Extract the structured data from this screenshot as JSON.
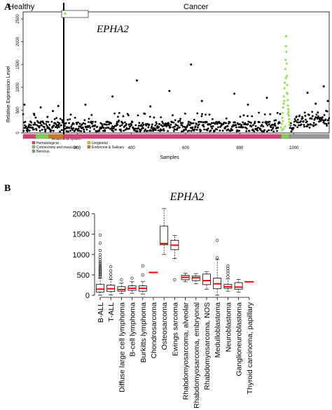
{
  "chart_data": [
    {
      "type": "scatter",
      "panel_label": "A",
      "gene_title": "EPHA2",
      "section_labels": [
        "Healthy",
        "Cancer"
      ],
      "ylabel": "Relative Expression Level",
      "xlabel": "Samples",
      "ylim": [
        0,
        2500
      ],
      "xlim": [
        0,
        1130
      ],
      "yticks": [
        0,
        500,
        1000,
        1500,
        2000,
        2500
      ],
      "xticks": [
        200,
        400,
        600,
        800,
        1000
      ],
      "healthy_divider_x": 150,
      "legend": {
        "marker": "sarcoma",
        "color": "#99dd55",
        "placement": "top-left"
      },
      "highlight_range": [
        950,
        985
      ],
      "sarcoma_points": [
        [
          952,
          120
        ],
        [
          955,
          200
        ],
        [
          957,
          330
        ],
        [
          958,
          440
        ],
        [
          960,
          560
        ],
        [
          962,
          640
        ],
        [
          963,
          800
        ],
        [
          965,
          980
        ],
        [
          966,
          1100
        ],
        [
          968,
          1400
        ],
        [
          969,
          1600
        ],
        [
          970,
          1900
        ],
        [
          971,
          2120
        ],
        [
          972,
          1780
        ],
        [
          973,
          1520
        ],
        [
          974,
          1250
        ],
        [
          975,
          1050
        ],
        [
          976,
          860
        ],
        [
          977,
          720
        ],
        [
          978,
          600
        ],
        [
          979,
          520
        ],
        [
          980,
          460
        ],
        [
          981,
          380
        ],
        [
          982,
          300
        ],
        [
          983,
          240
        ],
        [
          984,
          180
        ],
        [
          956,
          60
        ],
        [
          961,
          90
        ],
        [
          967,
          140
        ],
        [
          959,
          260
        ],
        [
          964,
          700
        ],
        [
          970,
          1200
        ],
        [
          974,
          880
        ],
        [
          978,
          420
        ]
      ],
      "outlier_points": [
        [
          5,
          620
        ],
        [
          40,
          420
        ],
        [
          65,
          560
        ],
        [
          90,
          350
        ],
        [
          110,
          480
        ],
        [
          130,
          590
        ],
        [
          230,
          620
        ],
        [
          330,
          800
        ],
        [
          420,
          1150
        ],
        [
          470,
          580
        ],
        [
          540,
          920
        ],
        [
          620,
          1500
        ],
        [
          660,
          700
        ],
        [
          780,
          860
        ],
        [
          830,
          620
        ],
        [
          900,
          770
        ],
        [
          1050,
          880
        ],
        [
          1080,
          640
        ],
        [
          1110,
          1020
        ],
        [
          1125,
          700
        ]
      ],
      "color_bar": [
        {
          "range": [
            0,
            45
          ],
          "system_index": 0
        },
        {
          "range": [
            45,
            95
          ],
          "system_index": 1
        },
        {
          "range": [
            95,
            150
          ],
          "system_index": 4
        },
        {
          "range": [
            150,
            952
          ],
          "system_index": 0
        },
        {
          "range": [
            952,
            985
          ],
          "system_index": 1
        },
        {
          "range": [
            985,
            1130
          ],
          "system_index": 2
        }
      ],
      "legend_title": "Anatomical system",
      "systems": [
        {
          "name": "Hematological",
          "color": "#d8407a"
        },
        {
          "name": "Connectivity and muscular",
          "color": "#88cc55"
        },
        {
          "name": "Nervous",
          "color": "#999999"
        },
        {
          "name": "Urogenital",
          "color": "#e0c040"
        },
        {
          "name": "Endocrine & Salivary",
          "color": "#cc7722"
        }
      ]
    },
    {
      "type": "box",
      "panel_label": "B",
      "title": "EPHA2",
      "ylim": [
        0,
        2200
      ],
      "yticks": [
        0,
        500,
        1000,
        1500,
        2000
      ],
      "median_color": "#ff0000",
      "categories": [
        "B-ALL",
        "T-ALL",
        "Diffuse large cell lymphoma",
        "B-cell lymphoma",
        "Burkitts lymphoma",
        "Chondrosarcoma",
        "Osteosarcoma",
        "Ewings sarcoma",
        "Rhabdomyosarcoma, alveolar",
        "Rhabdomyosarcoma, embryonal",
        "Rhabdomyosarcoma, NOS",
        "Medulloblastoma",
        "Neuroblastoma",
        "Ganglioneuroblastoma",
        "Thyroid carcinoma, papillary"
      ],
      "boxes": [
        {
          "q1": 80,
          "median": 150,
          "q3": 270,
          "whisker_low": 0,
          "whisker_high": 420,
          "outliers": [
            460,
            490,
            520,
            550,
            580,
            610,
            640,
            670,
            700,
            740,
            780,
            820,
            870,
            930,
            1000,
            1100,
            1280,
            1480
          ]
        },
        {
          "q1": 90,
          "median": 160,
          "q3": 250,
          "whisker_low": 10,
          "whisker_high": 390,
          "outliers": [
            440,
            520,
            600,
            700
          ]
        },
        {
          "q1": 100,
          "median": 140,
          "q3": 210,
          "whisker_low": 40,
          "whisker_high": 300,
          "outliers": [
            380
          ]
        },
        {
          "q1": 120,
          "median": 170,
          "q3": 230,
          "whisker_low": 50,
          "whisker_high": 330,
          "outliers": [
            420
          ]
        },
        {
          "q1": 100,
          "median": 170,
          "q3": 230,
          "whisker_low": 30,
          "whisker_high": 340,
          "outliers": [
            500,
            720
          ]
        },
        {
          "median": 560,
          "single": true
        },
        {
          "q1": 1240,
          "median": 1270,
          "q3": 1700,
          "whisker_low": 1000,
          "whisker_high": 2130,
          "outliers": []
        },
        {
          "q1": 1120,
          "median": 1230,
          "q3": 1350,
          "whisker_low": 900,
          "whisker_high": 1470,
          "outliers": [
            380
          ]
        },
        {
          "q1": 380,
          "median": 440,
          "q3": 490,
          "whisker_low": 330,
          "whisker_high": 540,
          "outliers": []
        },
        {
          "q1": 360,
          "median": 430,
          "q3": 470,
          "whisker_low": 280,
          "whisker_high": 530,
          "outliers": []
        },
        {
          "q1": 260,
          "median": 360,
          "q3": 520,
          "whisker_low": 150,
          "whisker_high": 580,
          "outliers": []
        },
        {
          "q1": 160,
          "median": 280,
          "q3": 420,
          "whisker_low": 0,
          "whisker_high": 880,
          "outliers": [
            920,
            1350
          ]
        },
        {
          "q1": 170,
          "median": 210,
          "q3": 270,
          "whisker_low": 100,
          "whisker_high": 400,
          "outliers": [
            460,
            540,
            600,
            660,
            720
          ]
        },
        {
          "q1": 150,
          "median": 200,
          "q3": 310,
          "whisker_low": 80,
          "whisker_high": 390,
          "outliers": []
        },
        {
          "median": 330,
          "single": true
        }
      ]
    }
  ]
}
